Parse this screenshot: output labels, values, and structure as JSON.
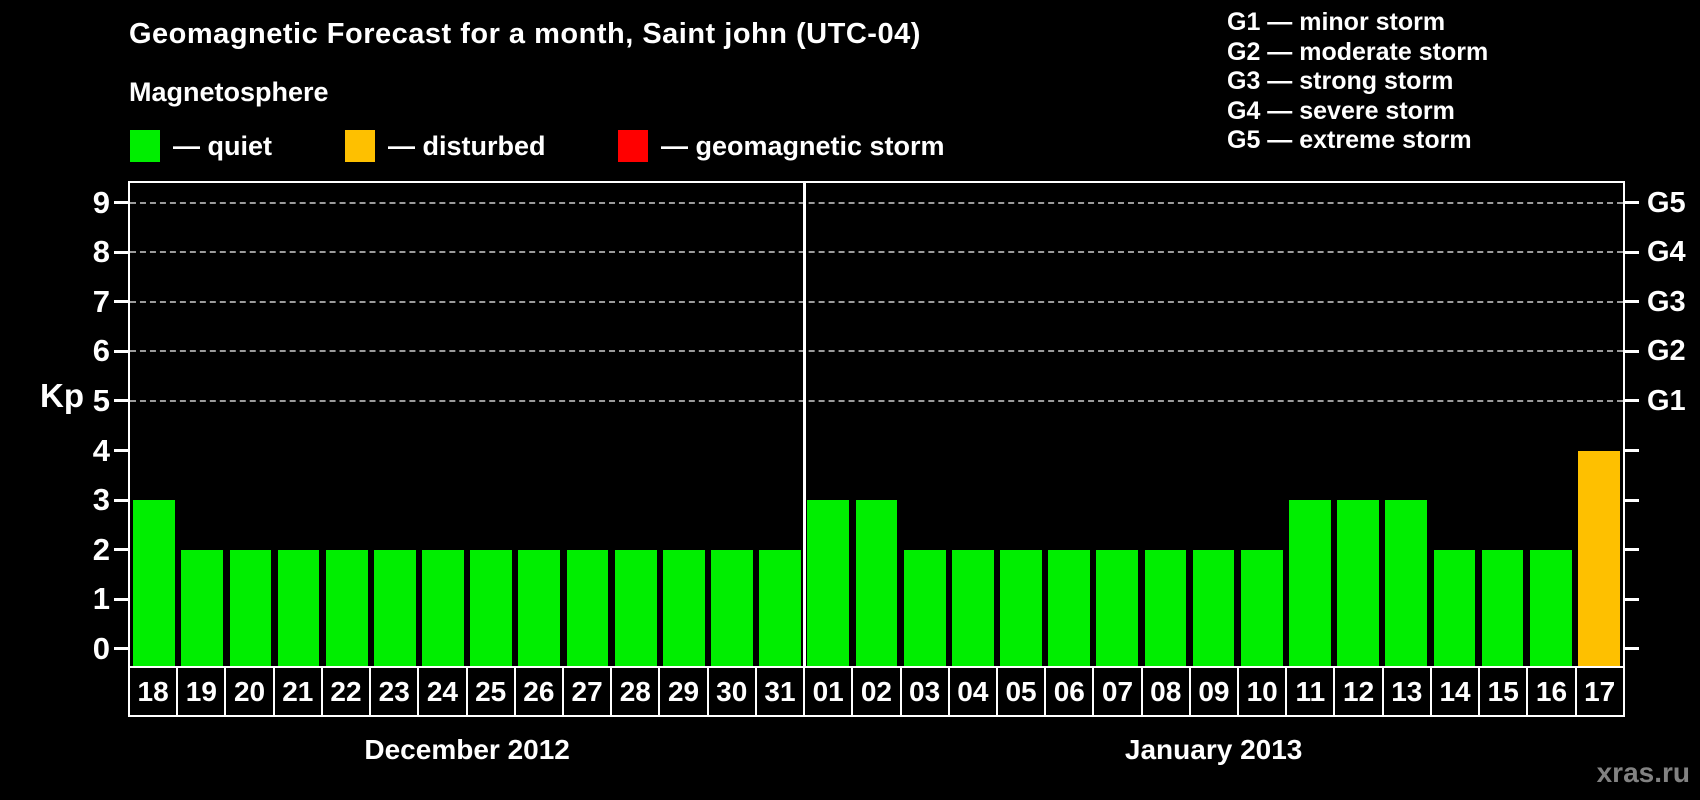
{
  "page": {
    "background": "#000000",
    "watermark": "xras.ru"
  },
  "header": {
    "title": "Geomagnetic Forecast for a month, Saint john (UTC-04)",
    "legend_title": "Magnetosphere",
    "legend": [
      {
        "key": "quiet",
        "label": "— quiet",
        "color": "#00ee00"
      },
      {
        "key": "disturbed",
        "label": "— disturbed",
        "color": "#fec000"
      },
      {
        "key": "storm",
        "label": "— geomagnetic storm",
        "color": "#ff0000"
      }
    ],
    "storm_scale": [
      {
        "label": "G1 — minor storm"
      },
      {
        "label": "G2 — moderate storm"
      },
      {
        "label": "G3 — strong storm"
      },
      {
        "label": "G4 — severe storm"
      },
      {
        "label": "G5 — extreme storm"
      }
    ]
  },
  "chart_data": {
    "type": "bar",
    "title": "Geomagnetic Forecast for a month, Saint john (UTC-04)",
    "ylabel": "Kp",
    "ylim": [
      -0.35,
      9.4
    ],
    "yticks": [
      0,
      1,
      2,
      3,
      4,
      5,
      6,
      7,
      8,
      9
    ],
    "gridline_levels": [
      5,
      6,
      7,
      8,
      9
    ],
    "grid_color": "#9b9b9b",
    "right_axis_labels": [
      {
        "kp": 5,
        "label": "G1"
      },
      {
        "kp": 6,
        "label": "G2"
      },
      {
        "kp": 7,
        "label": "G3"
      },
      {
        "kp": 8,
        "label": "G4"
      },
      {
        "kp": 9,
        "label": "G5"
      }
    ],
    "series_colors": {
      "quiet": "#00ee00",
      "disturbed": "#fec000",
      "storm": "#ff0000"
    },
    "months": [
      {
        "label": "December 2012",
        "days": [
          {
            "day": "18",
            "kp": 3,
            "status": "quiet"
          },
          {
            "day": "19",
            "kp": 2,
            "status": "quiet"
          },
          {
            "day": "20",
            "kp": 2,
            "status": "quiet"
          },
          {
            "day": "21",
            "kp": 2,
            "status": "quiet"
          },
          {
            "day": "22",
            "kp": 2,
            "status": "quiet"
          },
          {
            "day": "23",
            "kp": 2,
            "status": "quiet"
          },
          {
            "day": "24",
            "kp": 2,
            "status": "quiet"
          },
          {
            "day": "25",
            "kp": 2,
            "status": "quiet"
          },
          {
            "day": "26",
            "kp": 2,
            "status": "quiet"
          },
          {
            "day": "27",
            "kp": 2,
            "status": "quiet"
          },
          {
            "day": "28",
            "kp": 2,
            "status": "quiet"
          },
          {
            "day": "29",
            "kp": 2,
            "status": "quiet"
          },
          {
            "day": "30",
            "kp": 2,
            "status": "quiet"
          },
          {
            "day": "31",
            "kp": 2,
            "status": "quiet"
          }
        ]
      },
      {
        "label": "January 2013",
        "days": [
          {
            "day": "01",
            "kp": 3,
            "status": "quiet"
          },
          {
            "day": "02",
            "kp": 3,
            "status": "quiet"
          },
          {
            "day": "03",
            "kp": 2,
            "status": "quiet"
          },
          {
            "day": "04",
            "kp": 2,
            "status": "quiet"
          },
          {
            "day": "05",
            "kp": 2,
            "status": "quiet"
          },
          {
            "day": "06",
            "kp": 2,
            "status": "quiet"
          },
          {
            "day": "07",
            "kp": 2,
            "status": "quiet"
          },
          {
            "day": "08",
            "kp": 2,
            "status": "quiet"
          },
          {
            "day": "09",
            "kp": 2,
            "status": "quiet"
          },
          {
            "day": "10",
            "kp": 2,
            "status": "quiet"
          },
          {
            "day": "11",
            "kp": 3,
            "status": "quiet"
          },
          {
            "day": "12",
            "kp": 3,
            "status": "quiet"
          },
          {
            "day": "13",
            "kp": 3,
            "status": "quiet"
          },
          {
            "day": "14",
            "kp": 2,
            "status": "quiet"
          },
          {
            "day": "15",
            "kp": 2,
            "status": "quiet"
          },
          {
            "day": "16",
            "kp": 2,
            "status": "quiet"
          },
          {
            "day": "17",
            "kp": 4,
            "status": "disturbed"
          }
        ]
      }
    ]
  }
}
